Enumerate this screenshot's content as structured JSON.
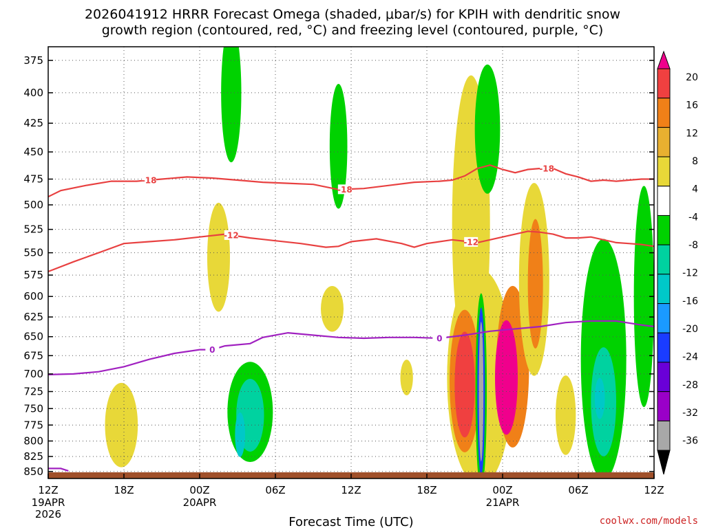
{
  "chart_data": {
    "type": "heatmap",
    "title_line1": "2026041912 HRRR Forecast Omega (shaded, μbar/s) for KPIH with dendritic snow",
    "title_line2": "growth region (contoured, red, °C) and freezing level (contoured, purple, °C)",
    "xlabel": "Forecast Time (UTC)",
    "credit": "coolwx.com/models",
    "x_range_hours": [
      0,
      48
    ],
    "y_range_mb": [
      365,
      862
    ],
    "y_ticks": [
      375,
      400,
      425,
      450,
      475,
      500,
      525,
      550,
      575,
      600,
      625,
      650,
      675,
      700,
      725,
      750,
      775,
      800,
      825,
      850
    ],
    "x_ticks": [
      {
        "hour": 0,
        "label": "12Z",
        "date": "19APR",
        "year": "2026"
      },
      {
        "hour": 6,
        "label": "18Z",
        "date": "",
        "year": ""
      },
      {
        "hour": 12,
        "label": "00Z",
        "date": "20APR",
        "year": ""
      },
      {
        "hour": 18,
        "label": "06Z",
        "date": "",
        "year": ""
      },
      {
        "hour": 24,
        "label": "12Z",
        "date": "",
        "year": ""
      },
      {
        "hour": 30,
        "label": "18Z",
        "date": "",
        "year": ""
      },
      {
        "hour": 36,
        "label": "00Z",
        "date": "21APR",
        "year": ""
      },
      {
        "hour": 42,
        "label": "06Z",
        "date": "",
        "year": ""
      },
      {
        "hour": 48,
        "label": "12Z",
        "date": "",
        "year": ""
      }
    ],
    "colorbar": {
      "levels": [
        -36,
        -32,
        -28,
        -24,
        -20,
        -16,
        -12,
        -8,
        -4,
        4,
        8,
        12,
        16,
        20
      ],
      "labels": [
        "20",
        "16",
        "12",
        "8",
        "4",
        "-4",
        "-8",
        "-12",
        "-16",
        "-20",
        "-24",
        "-28",
        "-32",
        "-36"
      ],
      "colors_low_to_high": [
        "#000000",
        "#a8a8a8",
        "#9a00c8",
        "#6a00d8",
        "#1a3cff",
        "#1a9aff",
        "#00c8c8",
        "#00d2a0",
        "#00d200",
        "#ffffff",
        "#e8d838",
        "#e8b030",
        "#f08018",
        "#f04040",
        "#f0008c"
      ]
    },
    "omega_regions": [
      {
        "hour": 5.8,
        "mb": 775,
        "hw": 1.3,
        "hh": 65,
        "value": 5
      },
      {
        "hour": 13.5,
        "mb": 555,
        "hw": 0.9,
        "hh": 60,
        "value": 5
      },
      {
        "hour": 16.0,
        "mb": 755,
        "hw": 1.8,
        "hh": 75,
        "value": -8
      },
      {
        "hour": 16.0,
        "mb": 760,
        "hw": 1.1,
        "hh": 55,
        "value": -12
      },
      {
        "hour": 15.2,
        "mb": 790,
        "hw": 0.4,
        "hh": 35,
        "value": -16
      },
      {
        "hour": 14.5,
        "mb": 400,
        "hw": 0.8,
        "hh": 55,
        "value": -6
      },
      {
        "hour": 23.0,
        "mb": 445,
        "hw": 0.7,
        "hh": 55,
        "value": -6
      },
      {
        "hour": 22.5,
        "mb": 615,
        "hw": 0.9,
        "hh": 28,
        "value": 5
      },
      {
        "hour": 28.4,
        "mb": 705,
        "hw": 0.5,
        "hh": 25,
        "value": 5
      },
      {
        "hour": 33.5,
        "mb": 520,
        "hw": 1.5,
        "hh": 150,
        "value": 5
      },
      {
        "hour": 34.2,
        "mb": 705,
        "hw": 2.6,
        "hh": 150,
        "value": 7
      },
      {
        "hour": 34.8,
        "mb": 430,
        "hw": 1.0,
        "hh": 55,
        "value": -6
      },
      {
        "hour": 33.0,
        "mb": 710,
        "hw": 1.2,
        "hh": 100,
        "value": 12
      },
      {
        "hour": 33.0,
        "mb": 715,
        "hw": 0.8,
        "hh": 75,
        "value": 16
      },
      {
        "hour": 36.8,
        "mb": 690,
        "hw": 1.3,
        "hh": 110,
        "value": 12
      },
      {
        "hour": 36.3,
        "mb": 705,
        "hw": 0.9,
        "hh": 80,
        "value": 20
      },
      {
        "hour": 34.3,
        "mb": 725,
        "hw": 0.45,
        "hh": 140,
        "value": -8
      },
      {
        "hour": 34.3,
        "mb": 725,
        "hw": 0.3,
        "hh": 120,
        "value": -24
      },
      {
        "hour": 34.3,
        "mb": 725,
        "hw": 0.18,
        "hh": 100,
        "value": -36
      },
      {
        "hour": 38.5,
        "mb": 580,
        "hw": 1.2,
        "hh": 110,
        "value": 5
      },
      {
        "hour": 38.6,
        "mb": 585,
        "hw": 0.6,
        "hh": 75,
        "value": 12
      },
      {
        "hour": 44.0,
        "mb": 680,
        "hw": 1.8,
        "hh": 160,
        "value": -6
      },
      {
        "hour": 44.0,
        "mb": 740,
        "hw": 1.0,
        "hh": 80,
        "value": -12
      },
      {
        "hour": 43.7,
        "mb": 735,
        "hw": 0.4,
        "hh": 30,
        "value": -16
      },
      {
        "hour": 47.2,
        "mb": 600,
        "hw": 0.8,
        "hh": 130,
        "value": -6
      },
      {
        "hour": 41.0,
        "mb": 760,
        "hw": 0.8,
        "hh": 60,
        "value": 5
      }
    ],
    "contours": [
      {
        "name": "-18",
        "color": "#e84040",
        "label_hours": [
          8.0,
          23.5,
          39.5
        ],
        "points": [
          [
            0,
            492
          ],
          [
            1,
            486
          ],
          [
            3,
            481
          ],
          [
            5,
            477
          ],
          [
            7,
            477
          ],
          [
            9,
            475
          ],
          [
            11,
            473
          ],
          [
            13,
            474
          ],
          [
            15,
            476
          ],
          [
            17,
            478
          ],
          [
            19,
            479
          ],
          [
            21,
            480
          ],
          [
            23,
            485
          ],
          [
            25,
            484
          ],
          [
            27,
            481
          ],
          [
            29,
            478
          ],
          [
            31,
            477
          ],
          [
            32,
            476
          ],
          [
            33,
            472
          ],
          [
            34,
            465
          ],
          [
            35,
            462
          ],
          [
            36,
            466
          ],
          [
            37,
            469
          ],
          [
            38,
            466
          ],
          [
            39,
            465
          ],
          [
            40,
            465
          ],
          [
            41,
            470
          ],
          [
            42,
            473
          ],
          [
            43,
            477
          ],
          [
            44,
            476
          ],
          [
            45,
            477
          ],
          [
            46,
            476
          ],
          [
            47,
            475
          ],
          [
            48,
            475
          ]
        ]
      },
      {
        "name": "-12",
        "color": "#e84040",
        "label_hours": [
          14.5,
          33.5
        ],
        "points": [
          [
            0,
            571
          ],
          [
            2,
            560
          ],
          [
            4,
            550
          ],
          [
            6,
            540
          ],
          [
            8,
            538
          ],
          [
            10,
            536
          ],
          [
            12,
            533
          ],
          [
            14,
            530
          ],
          [
            16,
            534
          ],
          [
            18,
            537
          ],
          [
            20,
            540
          ],
          [
            22,
            544
          ],
          [
            23,
            543
          ],
          [
            24,
            538
          ],
          [
            26,
            535
          ],
          [
            28,
            540
          ],
          [
            29,
            544
          ],
          [
            30,
            540
          ],
          [
            32,
            536
          ],
          [
            34,
            539
          ],
          [
            35,
            536
          ],
          [
            36,
            533
          ],
          [
            37,
            530
          ],
          [
            38,
            527
          ],
          [
            39,
            528
          ],
          [
            40,
            530
          ],
          [
            41,
            534
          ],
          [
            42,
            534
          ],
          [
            43,
            533
          ],
          [
            44,
            536
          ],
          [
            45,
            539
          ],
          [
            46,
            540
          ],
          [
            47,
            541
          ],
          [
            48,
            543
          ]
        ]
      },
      {
        "name": "0",
        "color": "#a020c0",
        "label_hours": [
          13.0,
          31.0
        ],
        "points": [
          [
            0,
            701
          ],
          [
            2,
            700
          ],
          [
            4,
            697
          ],
          [
            6,
            690
          ],
          [
            8,
            680
          ],
          [
            10,
            672
          ],
          [
            12,
            667
          ],
          [
            13,
            667
          ],
          [
            14,
            662
          ],
          [
            16,
            659
          ],
          [
            17,
            651
          ],
          [
            19,
            645
          ],
          [
            21,
            648
          ],
          [
            23,
            651
          ],
          [
            25,
            652
          ],
          [
            27,
            651
          ],
          [
            29,
            651
          ],
          [
            31,
            652
          ],
          [
            33,
            648
          ],
          [
            35,
            643
          ],
          [
            37,
            640
          ],
          [
            39,
            637
          ],
          [
            41,
            632
          ],
          [
            43,
            630
          ],
          [
            45,
            630
          ],
          [
            47,
            635
          ],
          [
            48,
            637
          ]
        ]
      },
      {
        "name": "0",
        "color": "#a020c0",
        "label_hours": [],
        "points": [
          [
            0,
            845
          ],
          [
            1,
            845
          ],
          [
            1.6,
            849
          ]
        ]
      }
    ]
  }
}
